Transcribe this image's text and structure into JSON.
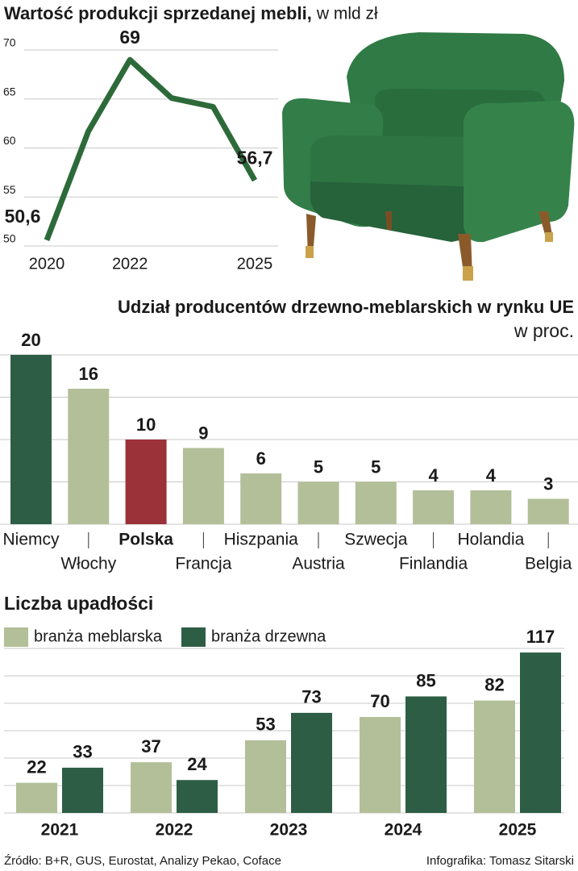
{
  "chart_data": [
    {
      "type": "line",
      "title": "Wartość produkcji sprzedanej mebli,",
      "subtitle": "w mld zł",
      "x": [
        2020,
        2021,
        2022,
        2023,
        2024,
        2025
      ],
      "values": [
        50.6,
        61.7,
        69,
        65.1,
        64.2,
        56.7
      ],
      "value_labels": [
        "50,6",
        null,
        "69",
        null,
        null,
        "56,7"
      ],
      "color": "#2d6a3a",
      "xlim": [
        2020,
        2025
      ],
      "xticks": [
        2020,
        2022,
        2025
      ],
      "ylim": [
        50,
        70
      ],
      "yticks": [
        50,
        55,
        60,
        65,
        70
      ],
      "grid": true
    },
    {
      "type": "bar",
      "title": "Udział producentów drzewno-meblarskich w rynku UE",
      "subtitle": "w proc.",
      "categories": [
        "Niemcy",
        "Włochy",
        "Polska",
        "Francja",
        "Hiszpania",
        "Austria",
        "Szwecja",
        "Finlandia",
        "Holandia",
        "Belgia"
      ],
      "values": [
        20,
        16,
        10,
        9,
        6,
        5,
        5,
        4,
        4,
        3
      ],
      "colors": [
        "#2d5e45",
        "#b3bf99",
        "#9b3139",
        "#b3bf99",
        "#b3bf99",
        "#b3bf99",
        "#b3bf99",
        "#b3bf99",
        "#b3bf99",
        "#b3bf99"
      ],
      "highlight_index": 2,
      "ylim": [
        0,
        20
      ],
      "yticks": [
        0,
        5,
        10,
        15,
        20
      ],
      "grid": true
    },
    {
      "type": "grouped_bar",
      "title": "Liczba upadłości",
      "categories": [
        "2021",
        "2022",
        "2023",
        "2024",
        "2025"
      ],
      "series": [
        {
          "name": "branża meblarska",
          "color": "#b3bf99",
          "values": [
            22,
            37,
            53,
            70,
            82
          ]
        },
        {
          "name": "branża drzewna",
          "color": "#2d5e45",
          "values": [
            33,
            24,
            73,
            85,
            117
          ]
        }
      ],
      "ylim": [
        0,
        120
      ],
      "yticks": [
        0,
        20,
        40,
        60,
        80,
        100,
        120
      ],
      "grid": true,
      "legend": "top-left"
    }
  ],
  "source": "Źródło: B+R, GUS, Eurostat, Analizy Pekao, Coface",
  "credit": "Infografika: Tomasz Sitarski"
}
